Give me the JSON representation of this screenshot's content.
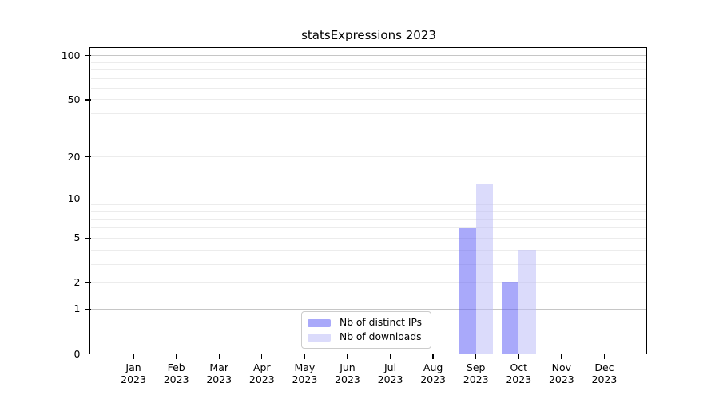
{
  "title": "statsExpressions 2023",
  "chart_data": {
    "type": "bar",
    "title": "statsExpressions 2023",
    "categories": [
      "Jan",
      "Feb",
      "Mar",
      "Apr",
      "May",
      "Jun",
      "Jul",
      "Aug",
      "Sep",
      "Oct",
      "Nov",
      "Dec"
    ],
    "category_year": "2023",
    "series": [
      {
        "name": "Nb of distinct IPs",
        "color": "rgba(99,99,245,0.55)",
        "values": [
          0,
          0,
          0,
          0,
          0,
          0,
          0,
          0,
          6,
          2,
          0,
          0
        ]
      },
      {
        "name": "Nb of downloads",
        "color": "rgba(189,190,248,0.55)",
        "values": [
          0,
          0,
          0,
          0,
          0,
          0,
          0,
          0,
          13,
          4,
          0,
          0
        ]
      }
    ],
    "xlabel": "",
    "ylabel": "",
    "yscale": "symlog (y ~ log10(value+1))",
    "ylim": [
      0,
      112
    ],
    "yticks": [
      100,
      50,
      20,
      10,
      5,
      2,
      1,
      0
    ],
    "grid_major": [
      1,
      10,
      100
    ],
    "grid_minor": [
      2,
      3,
      4,
      5,
      6,
      7,
      8,
      9,
      20,
      30,
      40,
      50,
      60,
      70,
      80,
      90
    ],
    "grid_on": true,
    "legend_position": "lower center"
  },
  "colors": {
    "background": "#ffffff",
    "spine": "#000000",
    "grid_major": "#c6c6c6",
    "grid_minor": "#ececec",
    "legend_border": "#cccccc",
    "series_1": "rgba(99,99,245,0.55)",
    "series_2": "rgba(189,190,248,0.55)"
  }
}
